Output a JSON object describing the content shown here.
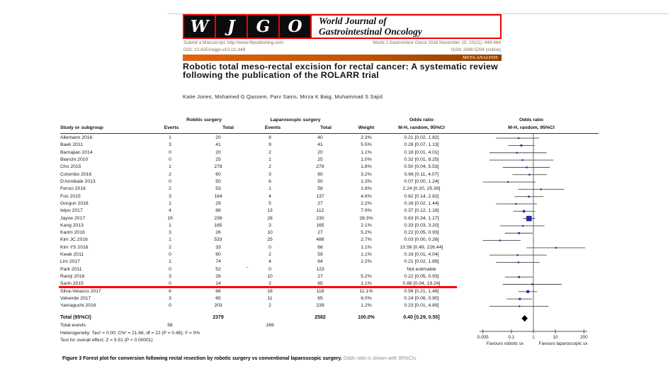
{
  "masthead": {
    "logo_letters": [
      "W",
      "J",
      "G",
      "O"
    ],
    "journal_line1": "World Journal of",
    "journal_line2": "Gastrointestinal Oncology",
    "submit_line": "Submit a Manuscript: http://www.f6publishing.com",
    "issue_line": "World J Gastrointest Oncol 2018 November 15; 10(11): 449-464",
    "doi_line": "DOI: 10.4251/wjgo.v10.i11.449",
    "issn_line": "ISSN 1948-5204 (online)",
    "article_type": "META-ANALYSIS",
    "colors": {
      "border_red": "#f40000",
      "box_black": "#0c0c0c",
      "banner_orange": "#c05508"
    }
  },
  "article": {
    "title": "Robotic total meso-rectal excision for rectal cancer: A systematic review following the publication of the ROLARR trial",
    "authors": "Katie Jones, Mohamed G Qassem, Parv Sains, Mirza K Baig, Muhammad S Sajid"
  },
  "chart_data": {
    "type": "forest",
    "scale": "log",
    "axis": {
      "ticks": [
        "0.005",
        "0.1",
        "1",
        "10",
        "200"
      ],
      "tick_values": [
        0.005,
        0.1,
        1,
        10,
        200
      ],
      "left_label": "Favours robotic sx",
      "right_label": "Favours laparoscopic sx"
    },
    "columns": {
      "study": "Study or subgroup",
      "group1": "Robitic surgery",
      "group2": "Laparosocpic surgery",
      "events1": "Everts",
      "total1": "Total",
      "events2": "Events",
      "total2": "Total",
      "weight": "Weight",
      "or_line1": "Odds ratio",
      "or_line2": "M-H, random, 95%CI",
      "plot_line1": "Odds ratio",
      "plot_line2": "M-H, random, 95%CI"
    },
    "marker_color": "#2424b4",
    "studies": [
      {
        "name": "Allemann 2016",
        "e1": "1",
        "t1": "20",
        "e2": "8",
        "t2": "40",
        "weight": "2.3%",
        "or_text": "0.21 [0.02, 1.82]",
        "or": 0.21,
        "lo": 0.02,
        "hi": 1.82
      },
      {
        "name": "Baek 2011",
        "e1": "3",
        "t1": "41",
        "e2": "9",
        "t2": "41",
        "weight": "5.5%",
        "or_text": "0.28 [0.07, 1.13]",
        "or": 0.28,
        "lo": 0.07,
        "hi": 1.13
      },
      {
        "name": "Barnajian 2014",
        "e1": "0",
        "t1": "20",
        "e2": "2",
        "t2": "20",
        "weight": "1.1%",
        "or_text": "0.18 [0.01, 4.01]",
        "or": 0.18,
        "lo": 0.01,
        "hi": 4.01
      },
      {
        "name": "Bianchi 2010",
        "e1": "0",
        "t1": "25",
        "e2": "1",
        "t2": "25",
        "weight": "1.0%",
        "or_text": "0.32 [0.01, 8.25]",
        "or": 0.32,
        "lo": 0.01,
        "hi": 8.25
      },
      {
        "name": "Cho 2015",
        "e1": "1",
        "t1": "278",
        "e2": "2",
        "t2": "278",
        "weight": "1.8%",
        "or_text": "0.50 [0.04, 5.53]",
        "or": 0.5,
        "lo": 0.04,
        "hi": 5.53
      },
      {
        "name": "Colombo 2016",
        "e1": "2",
        "t1": "60",
        "e2": "3",
        "t2": "60",
        "weight": "3.2%",
        "or_text": "0.66 [0.11, 4.07]",
        "or": 0.66,
        "lo": 0.11,
        "hi": 4.07
      },
      {
        "name": "D'Annibale 2013",
        "e1": "0",
        "t1": "50",
        "e2": "6",
        "t2": "50",
        "weight": "1.3%",
        "or_text": "0.07 [0.00, 1.24]",
        "or": 0.07,
        "lo": 0.0,
        "hi": 1.24
      },
      {
        "name": "Feroci 2016",
        "e1": "2",
        "t1": "53",
        "e2": "1",
        "t2": "58",
        "weight": "1.8%",
        "or_text": "2.24 [0.20, 25.39]",
        "or": 2.24,
        "lo": 0.2,
        "hi": 25.39
      },
      {
        "name": "Foo 2015",
        "e1": "3",
        "t1": "164",
        "e2": "4",
        "t2": "137",
        "weight": "4.6%",
        "or_text": "0.62 [0.14, 2.82]",
        "or": 0.62,
        "lo": 0.14,
        "hi": 2.82
      },
      {
        "name": "Gorgun 2016",
        "e1": "1",
        "t1": "29",
        "e2": "5",
        "t2": "27",
        "weight": "2.2%",
        "or_text": "0.16 [0.02, 1.44]",
        "or": 0.16,
        "lo": 0.02,
        "hi": 1.44
      },
      {
        "name": "Ielpo 2017",
        "e1": "4",
        "t1": "86",
        "e2": "13",
        "t2": "112",
        "weight": "7.9%",
        "or_text": "0.37 [0.12, 1.18]",
        "or": 0.37,
        "lo": 0.12,
        "hi": 1.18
      },
      {
        "name": "Jayne 2017",
        "e1": "19",
        "t1": "236",
        "e2": "28",
        "t2": "230",
        "weight": "28.3%",
        "or_text": "0.63 [0.34, 1.17]",
        "or": 0.63,
        "lo": 0.34,
        "hi": 1.17
      },
      {
        "name": "Kang 2013",
        "e1": "1",
        "t1": "165",
        "e2": "3",
        "t2": "165",
        "weight": "2.1%",
        "or_text": "0.33 [0.03, 3.20]",
        "or": 0.33,
        "lo": 0.03,
        "hi": 3.2
      },
      {
        "name": "Karim 2016",
        "e1": "3",
        "t1": "26",
        "e2": "10",
        "t2": "27",
        "weight": "5.2%",
        "or_text": "0.22 [0.05, 0.93]",
        "or": 0.22,
        "lo": 0.05,
        "hi": 0.93
      },
      {
        "name": "Kim JC 2016",
        "e1": "1",
        "t1": "533",
        "e2": "25",
        "t2": "486",
        "weight": "2.7%",
        "or_text": "0.03 [0.00, 0.26]",
        "or": 0.03,
        "lo": 0.0,
        "hi": 0.26
      },
      {
        "name": "Kim YS 2016",
        "e1": "2",
        "t1": "33",
        "e2": "0",
        "t2": "66",
        "weight": "1.1%",
        "or_text": "10.56 [0.49, 226.44]",
        "or": 10.56,
        "lo": 0.49,
        "hi": 226.44
      },
      {
        "name": "Kwak 2011",
        "e1": "0",
        "t1": "60",
        "e2": "2",
        "t2": "59",
        "weight": "1.1%",
        "or_text": "0.19 [0.01, 4.04]",
        "or": 0.19,
        "lo": 0.01,
        "hi": 4.04
      },
      {
        "name": "Lim 2017",
        "e1": "1",
        "t1": "74",
        "e2": "4",
        "t2": "64",
        "weight": "2.2%",
        "or_text": "0.21 [0.02, 1.89]",
        "or": 0.21,
        "lo": 0.02,
        "hi": 1.89
      },
      {
        "name": "Park 2011",
        "e1": "0",
        "t1": "52",
        "e2": "0",
        "t2": "123",
        "weight": "",
        "or_text": "Not estimable",
        "or": null,
        "lo": null,
        "hi": null,
        "stray_dash": "-"
      },
      {
        "name": "Ramji 2016",
        "e1": "3",
        "t1": "26",
        "e2": "10",
        "t2": "27",
        "weight": "5.2%",
        "or_text": "0.22 [0.05, 0.93]",
        "or": 0.22,
        "lo": 0.05,
        "hi": 0.93
      },
      {
        "name": "Sarin 2015",
        "e1": "0",
        "t1": "14",
        "e2": "2",
        "t2": "65",
        "weight": "1.1%",
        "or_text": "0.88 [0.04, 19.24]",
        "or": 0.88,
        "lo": 0.04,
        "hi": 19.24,
        "red_underline": true
      },
      {
        "name": "Silva-Velazco 2017",
        "e1": "6",
        "t1": "66",
        "e2": "18",
        "t2": "118",
        "weight": "11.1%",
        "or_text": "0.56 [0.21, 1.48]",
        "or": 0.56,
        "lo": 0.21,
        "hi": 1.48
      },
      {
        "name": "Valverde 2017",
        "e1": "3",
        "t1": "65",
        "e2": "11",
        "t2": "65",
        "weight": "6.0%",
        "or_text": "0.24 [0.06, 0.90]",
        "or": 0.24,
        "lo": 0.06,
        "hi": 0.9
      },
      {
        "name": "Yamaguchi 2016",
        "e1": "0",
        "t1": "203",
        "e2": "2",
        "t2": "239",
        "weight": "1.2%",
        "or_text": "0.23 [0.01, 4.89]",
        "or": 0.23,
        "lo": 0.01,
        "hi": 4.89
      }
    ],
    "total": {
      "label": "Total (95%CI)",
      "t1": "2379",
      "t2": "2582",
      "weight": "100.0%",
      "or_text": "0.40 [0.29, 0.55]",
      "or": 0.4,
      "lo": 0.29,
      "hi": 0.55
    },
    "total_events": {
      "label": "Total evevts",
      "e1": "56",
      "e2": "169"
    },
    "heterogeneity": "Heterogeneity: Tau² = 0.00; Chi² = 21.68, df = 22 (P = 0.48); I² = 0%",
    "overall_effect": "Test for overall effect: Z = 5.51 (P < 0.00001)"
  },
  "figure_caption": {
    "bold": "Figure 3  Forest plot for conversion following rectal resection by robotic surgery vs conventional laparoscopic surgery.",
    "normal": " Odds ratio is shown with 95%CIs."
  }
}
